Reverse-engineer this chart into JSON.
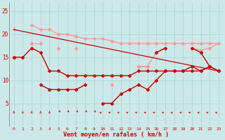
{
  "xlabel": "Vent moyen/en rafales ( km/h )",
  "x": [
    0,
    1,
    2,
    3,
    4,
    5,
    6,
    7,
    8,
    9,
    10,
    11,
    12,
    13,
    14,
    15,
    16,
    17,
    18,
    19,
    20,
    21,
    22,
    23
  ],
  "light1": [
    21,
    null,
    22,
    21,
    21,
    20,
    20,
    19.5,
    19,
    19,
    19,
    18.5,
    18,
    18,
    18,
    18,
    18,
    18,
    18,
    18,
    18,
    18,
    18,
    18
  ],
  "light2_x": [
    2,
    3,
    4,
    5,
    6,
    7,
    8,
    9,
    10,
    11,
    12,
    13,
    14,
    15,
    16,
    17,
    18,
    19,
    20,
    21,
    22,
    23
  ],
  "light2": [
    18,
    18,
    null,
    17,
    null,
    17,
    null,
    null,
    null,
    9,
    null,
    null,
    13,
    13,
    null,
    null,
    null,
    null,
    null,
    null,
    null,
    null
  ],
  "light3_x": [
    11,
    12,
    13,
    14,
    15,
    16,
    17,
    18,
    19,
    20,
    21,
    22,
    23
  ],
  "light3": [
    9,
    null,
    null,
    13,
    13,
    16,
    17,
    null,
    null,
    17,
    16.5,
    17,
    18
  ],
  "dark1": [
    21,
    null,
    null,
    null,
    null,
    null,
    null,
    null,
    null,
    null,
    null,
    null,
    null,
    null,
    null,
    null,
    null,
    null,
    null,
    null,
    null,
    null,
    null,
    12
  ],
  "dark2": [
    15,
    15,
    17,
    16,
    12,
    12,
    11,
    11,
    11,
    11,
    11,
    11,
    11,
    11,
    12,
    12,
    12,
    12,
    12,
    12,
    13,
    12,
    13,
    12
  ],
  "dark3": [
    15,
    null,
    null,
    9,
    8,
    8,
    8,
    8,
    9,
    null,
    5,
    5,
    7,
    8,
    9,
    8,
    10,
    12,
    12,
    12,
    12,
    12,
    13,
    12
  ],
  "dark4": [
    null,
    null,
    null,
    null,
    null,
    null,
    null,
    null,
    null,
    null,
    null,
    null,
    null,
    null,
    null,
    null,
    16,
    17,
    null,
    null,
    17,
    16,
    13,
    null
  ],
  "background": "#cce8e8",
  "grid_color": "#aad4d4",
  "dark": "#cc0000",
  "light": "#ff9999",
  "ylim": [
    0,
    27
  ],
  "yticks": [
    5,
    10,
    15,
    20,
    25
  ]
}
